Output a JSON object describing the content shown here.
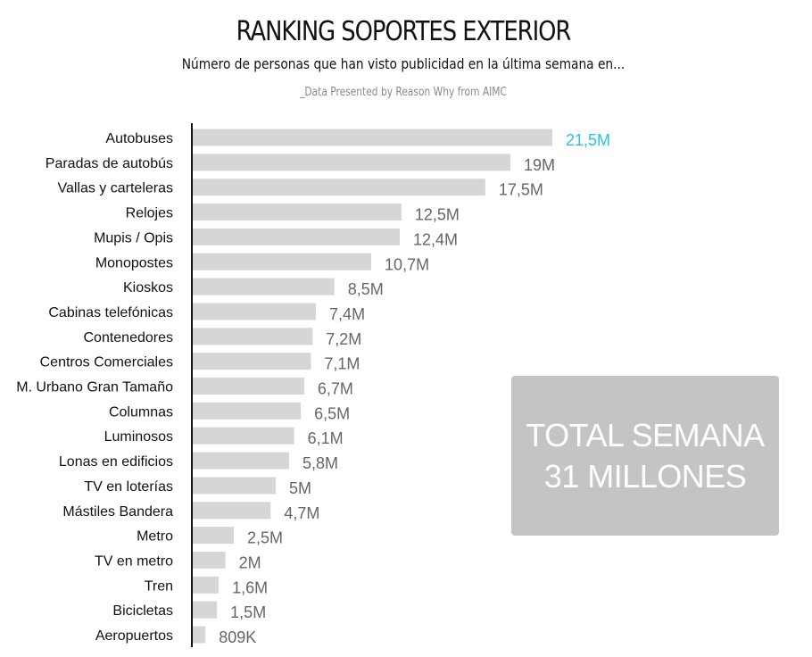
{
  "chart_data": {
    "type": "bar",
    "orientation": "horizontal",
    "title": "RANKING SOPORTES EXTERIOR",
    "subtitle": "Número de personas que han visto publicidad en la última semana en...",
    "credit": "_Data Presented by Reason Why from AIMC",
    "unit": "millions",
    "categories": [
      "Autobuses",
      "Paradas de autobús",
      "Vallas y carteleras",
      "Relojes",
      "Mupis / Opis",
      "Monopostes",
      "Kioskos",
      "Cabinas telefónicas",
      "Contenedores",
      "Centros Comerciales",
      "M. Urbano Gran Tamaño",
      "Columnas",
      "Luminosos",
      "Lonas en edificios",
      "TV en loterías",
      "Mástiles Bandera",
      "Metro",
      "TV en metro",
      "Tren",
      "Bicicletas",
      "Aeropuertos"
    ],
    "values": [
      21.5,
      19,
      17.5,
      12.5,
      12.4,
      10.7,
      8.5,
      7.4,
      7.2,
      7.1,
      6.7,
      6.5,
      6.1,
      5.8,
      5,
      4.7,
      2.5,
      2,
      1.6,
      1.5,
      0.809
    ],
    "value_labels": [
      "21,5M",
      "19M",
      "17,5M",
      "12,5M",
      "12,4M",
      "10,7M",
      "8,5M",
      "7,4M",
      "7,2M",
      "7,1M",
      "6,7M",
      "6,5M",
      "6,1M",
      "5,8M",
      "5M",
      "4,7M",
      "2,5M",
      "2M",
      "1,6M",
      "1,5M",
      "809K"
    ],
    "highlight_index": 0,
    "colors": {
      "bar": "#d6d6d6",
      "label": "#666666",
      "highlight_label": "#29c4dc",
      "axis": "#111111",
      "category_text": "#111111"
    },
    "grid": false,
    "legend": "none"
  },
  "total_box": {
    "line1": "TOTAL SEMANA",
    "line2": "31 MILLONES",
    "background": "#c4c4c4",
    "text_color": "#ffffff"
  }
}
